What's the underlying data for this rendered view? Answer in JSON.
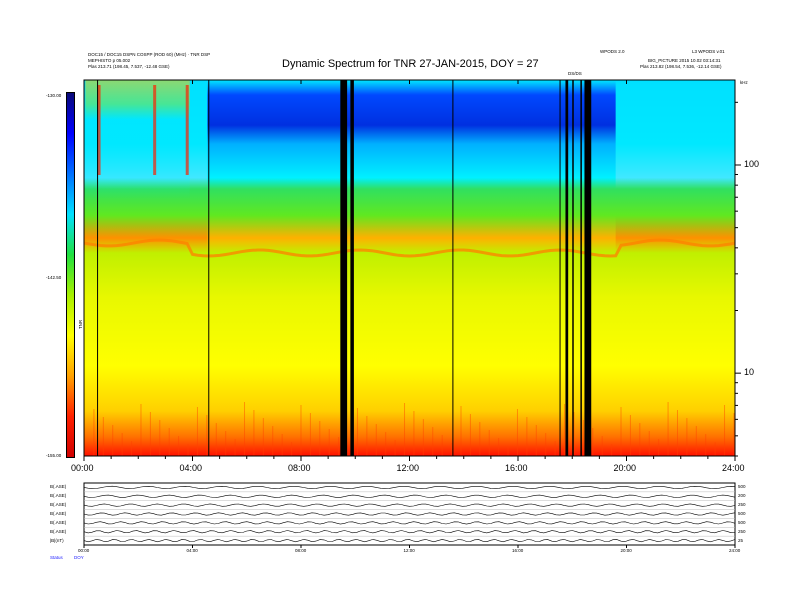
{
  "header": {
    "title": "Dynamic Spectrum for TNR 27-JAN-2015, DOY = 27",
    "left_line1": "DOC15 / DOC15 DSPN COSPP (ROD 60) (MHz) · TNR DSP",
    "left_line2": "MEPHISTO p 05.002",
    "left_line3": "Plas   213.71 (198.45, 7.537, -12.48 GSE)",
    "right_top_a": "WPODS 2.0",
    "right_top_b": "L3 WPODS v.01",
    "right_line2": "BIG_PICTURE 2015 10.02 03:14:31",
    "right_line3": "Plas   213.82 (198.54, 7.536, -12.14 GSE)",
    "flag_label": "DS/DS",
    "kHz_label": "kHz"
  },
  "colorbar": {
    "max_label": "-130.00",
    "mid_label": "-142.50",
    "min_label": "-155.00",
    "axis_label": "TNR",
    "stops": [
      "#0a0a78",
      "#0000ff",
      "#0070ff",
      "#00e0ff",
      "#20e040",
      "#a8f000",
      "#ffff00",
      "#ffa000",
      "#ff2000",
      "#d00000"
    ]
  },
  "chart_data": {
    "type": "heatmap",
    "title": "Dynamic Spectrum for TNR 27-JAN-2015, DOY = 27",
    "x_ticks": [
      "00:00",
      "04:00",
      "08:00",
      "12:00",
      "16:00",
      "20:00",
      "24:00"
    ],
    "x_range_hours": [
      0,
      24
    ],
    "y_scale": "log",
    "y_unit": "kHz",
    "y_ticks": [
      10,
      100
    ],
    "y_range_khz": [
      4,
      256
    ],
    "colorbar_range_db": [
      -155.0,
      -130.0
    ],
    "data_gaps_hours": [
      [
        9.45,
        9.7
      ],
      [
        9.82,
        9.95
      ],
      [
        17.75,
        17.85
      ],
      [
        18.0,
        18.05
      ],
      [
        18.3,
        18.35
      ],
      [
        18.45,
        18.7
      ]
    ],
    "marker_lines_hours": [
      0.5,
      4.6,
      13.6,
      17.55
    ]
  },
  "lower_panel": {
    "labels": [
      "B(.ASE)",
      "B(.ASE)",
      "B(.ASE)",
      "B(.ASE)",
      "B(.ASE)",
      "B(.ASE)",
      "|B|(nT)"
    ],
    "right_labels": [
      "500",
      "200",
      "250",
      "500",
      "500",
      "250",
      "25"
    ],
    "time_ticks": [
      "00:00",
      "04:00",
      "08:00",
      "12:00",
      "16:00",
      "20:00",
      "24:00"
    ],
    "status_label": "Status",
    "status_value": "DOY"
  }
}
